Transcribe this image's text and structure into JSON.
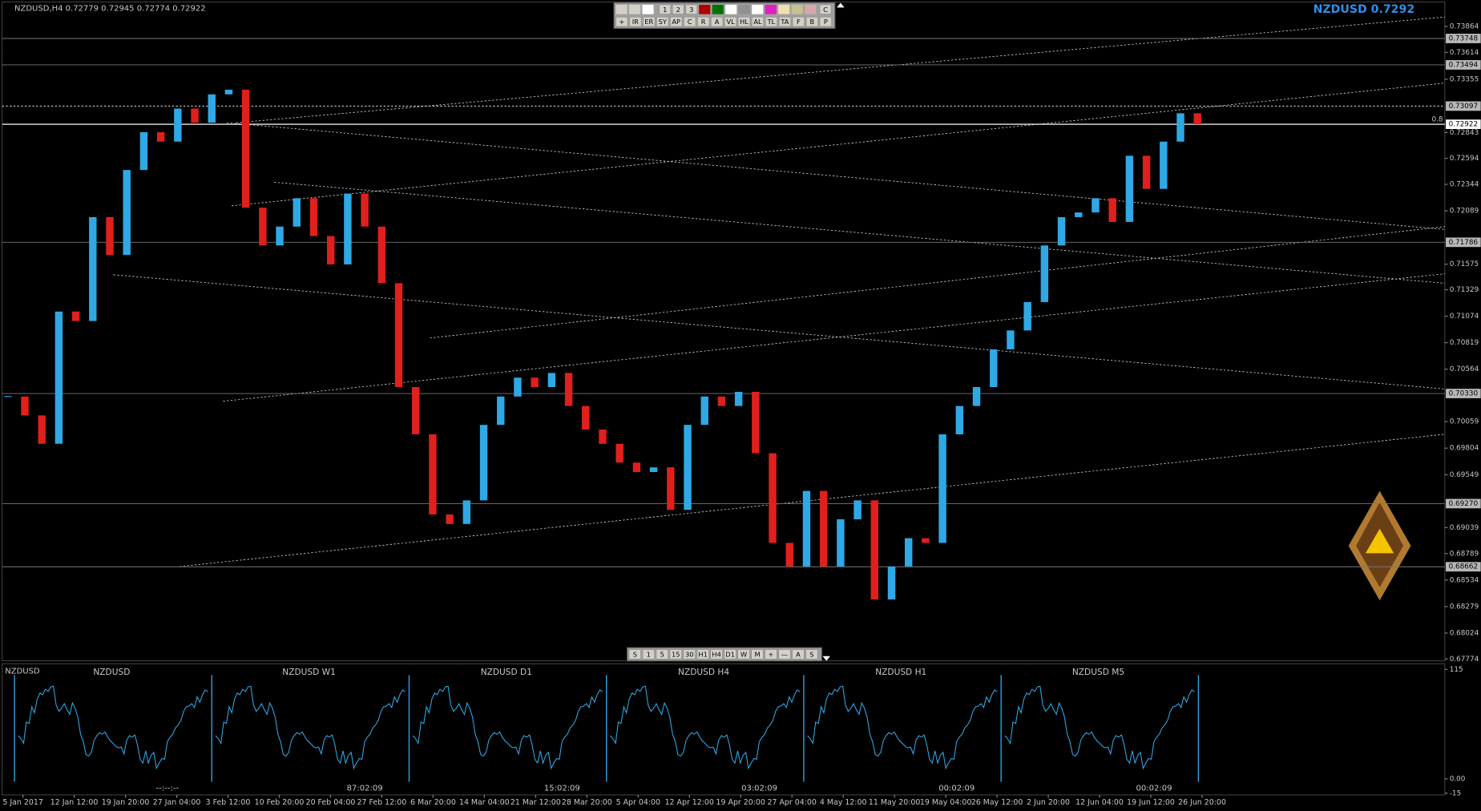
{
  "header": {
    "title": "NZDUSD,H4  0.72779 0.72945 0.72774 0.72922",
    "quote_label": "NZDUSD 0.7292"
  },
  "toolbar_top": {
    "row1": [
      "1",
      "2",
      "3",
      "C"
    ],
    "row2": [
      "+",
      "IR",
      "ER",
      "SY",
      "AP",
      "C",
      "R",
      "A",
      "VL",
      "HL",
      "AL",
      "TL",
      "TA",
      "F",
      "B",
      "P"
    ]
  },
  "toolbar_bottom": [
    "S",
    "1",
    "5",
    "15",
    "30",
    "H1",
    "H4",
    "D1",
    "W",
    "M",
    "+",
    "—",
    "A",
    "S"
  ],
  "chart_data": {
    "type": "candlestick",
    "closes": [
      0.70301,
      0.70119,
      0.69846,
      0.71119,
      0.71028,
      0.72028,
      0.71664,
      0.72482,
      0.72846,
      0.72755,
      0.73073,
      0.72937,
      0.7321,
      0.73255,
      0.72119,
      0.71755,
      0.71937,
      0.7221,
      0.71846,
      0.71573,
      0.72255,
      0.71937,
      0.71392,
      0.70392,
      0.69937,
      0.69165,
      0.69074,
      0.69301,
      0.70028,
      0.70301,
      0.70483,
      0.70392,
      0.70528,
      0.7021,
      0.69983,
      0.69846,
      0.69665,
      0.69574,
      0.69619,
      0.6921,
      0.70028,
      0.70301,
      0.7021,
      0.70346,
      0.69755,
      0.68892,
      0.68665,
      0.69392,
      0.68665,
      0.69119,
      0.69301,
      0.68347,
      0.68665,
      0.68937,
      0.68892,
      0.69937,
      0.7021,
      0.70392,
      0.70755,
      0.70937,
      0.7121,
      0.71755,
      0.72028,
      0.72073,
      0.7221,
      0.71982,
      0.72619,
      0.723,
      0.72755,
      0.73028,
      0.72922
    ],
    "up_color": "#2fa8e6",
    "down_color": "#e0201c",
    "ylim": [
      0.67774,
      0.73864
    ],
    "yticks": [
      0.73864,
      0.73614,
      0.73355,
      0.72843,
      0.72594,
      0.72344,
      0.72089,
      0.71575,
      0.71329,
      0.71074,
      0.70819,
      0.70564,
      0.70059,
      0.69804,
      0.69549,
      0.69039,
      0.68789,
      0.68534,
      0.68279,
      0.68024,
      0.67774
    ],
    "levels": [
      0.73748,
      0.73494,
      0.73097,
      0.72922,
      0.71786,
      {
        "value": 0.7033,
        "label": "0.70330"
      },
      {
        "value": 0.6927,
        "label": "0.69270"
      },
      0.68662
    ],
    "level_styles": [
      "solid",
      "solid",
      "dotted",
      "current",
      "solid",
      "solid",
      "solid",
      "solid"
    ],
    "level_annotation": "0.8",
    "x_tick_labels": [
      "5 Jan 2017",
      "12 Jan 12:00",
      "19 Jan 20:00",
      "27 Jan 04:00",
      "3 Feb 12:00",
      "10 Feb 20:00",
      "20 Feb 04:00",
      "27 Feb 12:00",
      "6 Mar 20:00",
      "14 Mar 04:00",
      "21 Mar 12:00",
      "28 Mar 20:00",
      "5 Apr 04:00",
      "12 Apr 12:00",
      "19 Apr 20:00",
      "27 Apr 04:00",
      "4 May 12:00",
      "11 May 20:00",
      "19 May 04:00",
      "26 May 12:00",
      "2 Jun 20:00",
      "12 Jun 04:00",
      "19 Jun 12:00",
      "26 Jun 20:00"
    ]
  },
  "subwindow": {
    "title": "NZDUSD",
    "panels": [
      {
        "label": "NZDUSD",
        "timer": "--:--:--"
      },
      {
        "label": "NZDUSD W1",
        "timer": "87:02:09"
      },
      {
        "label": "NZDUSD D1",
        "timer": "15:02:09"
      },
      {
        "label": "NZDUSD H4",
        "timer": "03:02:09"
      },
      {
        "label": "NZDUSD H1",
        "timer": "00:02:09"
      },
      {
        "label": "NZDUSD M5",
        "timer": "00:02:09"
      }
    ],
    "yticks": [
      115,
      {
        "value": 0,
        "label": "0.00"
      },
      -15
    ]
  }
}
